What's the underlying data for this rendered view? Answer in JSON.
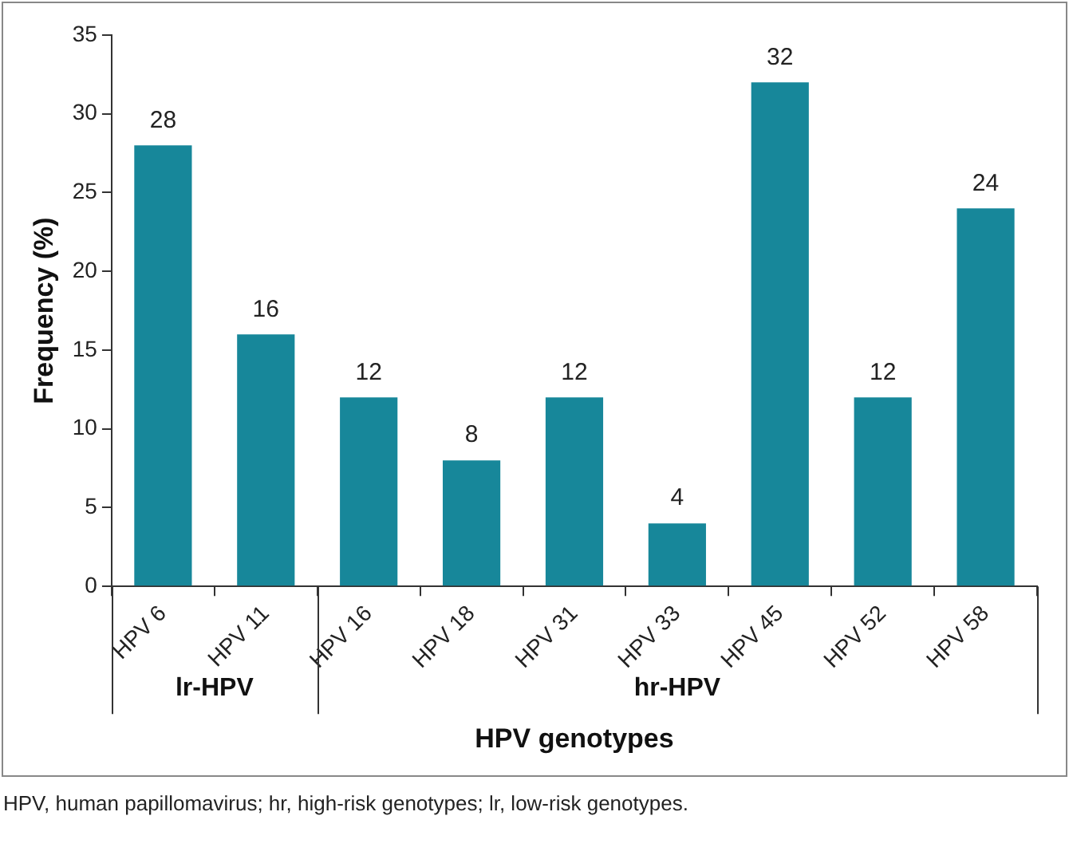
{
  "chart_data": {
    "type": "bar",
    "xlabel": "HPV genotypes",
    "ylabel": "Frequency (%)",
    "categories": [
      "HPV 6",
      "HPV 11",
      "HPV 16",
      "HPV 18",
      "HPV 31",
      "HPV 33",
      "HPV 45",
      "HPV 52",
      "HPV 58"
    ],
    "values": [
      28,
      16,
      12,
      8,
      12,
      4,
      32,
      12,
      24
    ],
    "color": "#17879a",
    "ylim": [
      0,
      35
    ],
    "yticks": [
      0,
      5,
      10,
      15,
      20,
      25,
      30,
      35
    ],
    "grid": false,
    "legend": false,
    "data_labels": true,
    "annotations": [
      "lr-HPV",
      "hr-HPV",
      "HPV, human papillomavirus; hr, high-risk genotypes; lr, low-risk genotypes."
    ]
  }
}
